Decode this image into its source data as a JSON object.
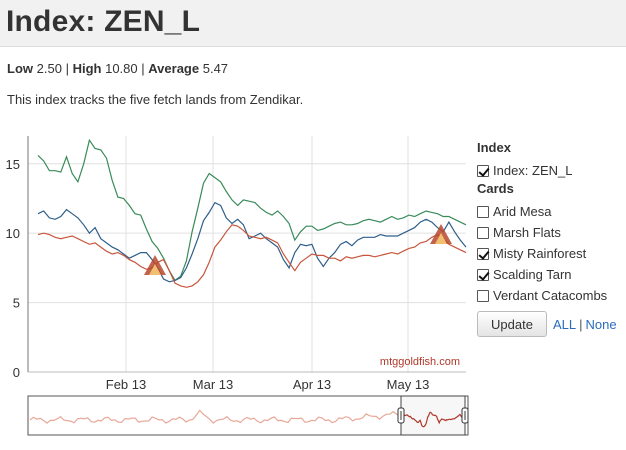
{
  "header": {
    "title": "Index: ZEN_L"
  },
  "stats": {
    "low_label": "Low",
    "low_value": "2.50",
    "high_label": "High",
    "high_value": "10.80",
    "avg_label": "Average",
    "avg_value": "5.47",
    "separator": "|"
  },
  "description": "This index tracks the five fetch lands from Zendikar.",
  "chart": {
    "watermark": "mtggoldfish.com",
    "colors": {
      "index": "#c8553d",
      "misty": "#2e5f8a",
      "scalding": "#3a8a5a",
      "grid": "#e0e0e0",
      "navigator": "#e8a898"
    }
  },
  "chart_data": {
    "type": "line",
    "ylim": [
      0,
      17
    ],
    "yticks": [
      "0",
      "5",
      "10",
      "15"
    ],
    "xticks": [
      "Feb 13",
      "Mar 13",
      "Apr 13",
      "May 13"
    ],
    "grid": true,
    "legend_placement": "right",
    "series": [
      {
        "name": "Index: ZEN_L",
        "color": "#c8553d",
        "values": [
          9.9,
          10.0,
          9.9,
          9.7,
          9.6,
          9.7,
          9.8,
          9.6,
          9.4,
          9.2,
          9.3,
          9.0,
          8.7,
          8.5,
          8.6,
          8.4,
          8.1,
          7.9,
          7.6,
          7.4,
          7.5,
          7.9,
          8.1,
          7.3,
          6.4,
          6.2,
          6.1,
          6.2,
          6.5,
          7.0,
          7.9,
          9.0,
          9.5,
          10.1,
          10.6,
          10.5,
          10.2,
          9.8,
          9.7,
          9.6,
          9.7,
          9.5,
          9.3,
          8.5,
          7.9,
          7.3,
          7.9,
          8.2,
          8.5,
          8.4,
          8.4,
          8.2,
          8.2,
          8.0,
          8.3,
          8.2,
          8.3,
          8.4,
          8.4,
          8.3,
          8.4,
          8.5,
          8.6,
          8.5,
          8.7,
          8.9,
          9.0,
          9.3,
          9.4,
          9.7,
          9.9,
          9.6,
          9.2,
          9.0,
          8.8,
          8.6
        ]
      },
      {
        "name": "Misty Rainforest",
        "color": "#2e5f8a",
        "values": [
          11.4,
          11.6,
          11.1,
          11.0,
          11.2,
          11.7,
          11.4,
          11.1,
          10.6,
          10.0,
          10.4,
          9.6,
          9.3,
          9.0,
          8.8,
          8.5,
          8.2,
          8.4,
          8.6,
          8.6,
          8.1,
          7.5,
          6.7,
          6.5,
          6.6,
          6.8,
          7.5,
          8.5,
          9.6,
          10.9,
          11.5,
          12.2,
          12.0,
          11.1,
          10.7,
          11.0,
          10.6,
          9.6,
          9.8,
          10.0,
          9.6,
          9.3,
          9.0,
          8.1,
          7.5,
          8.6,
          9.2,
          9.1,
          9.2,
          8.2,
          7.6,
          8.2,
          8.6,
          9.2,
          9.4,
          9.1,
          9.5,
          9.7,
          9.7,
          9.7,
          9.9,
          9.8,
          9.8,
          9.8,
          10.0,
          10.2,
          10.4,
          10.8,
          11.0,
          10.8,
          10.4,
          10.1,
          10.8,
          10.1,
          9.5,
          9.0
        ]
      },
      {
        "name": "Scalding Tarn",
        "color": "#3a8a5a",
        "values": [
          15.6,
          15.2,
          14.5,
          14.5,
          14.4,
          15.5,
          14.3,
          13.7,
          15.0,
          16.7,
          16.1,
          16.0,
          15.4,
          13.8,
          12.6,
          12.5,
          12.0,
          11.4,
          11.3,
          10.3,
          9.4,
          8.9,
          8.2,
          7.3,
          6.6,
          6.9,
          8.0,
          10.1,
          11.8,
          13.6,
          14.3,
          14.0,
          13.7,
          13.0,
          12.4,
          12.0,
          12.4,
          12.3,
          12.2,
          11.8,
          11.5,
          11.3,
          11.6,
          11.2,
          10.7,
          9.5,
          10.1,
          10.5,
          10.5,
          10.2,
          10.3,
          10.5,
          10.7,
          10.8,
          10.6,
          10.6,
          10.7,
          10.9,
          11.0,
          10.9,
          10.8,
          11.0,
          11.2,
          11.0,
          11.1,
          11.3,
          11.2,
          11.4,
          11.6,
          11.5,
          11.4,
          11.2,
          11.2,
          11.0,
          10.8,
          10.6
        ]
      }
    ]
  },
  "legend": {
    "index_heading": "Index",
    "cards_heading": "Cards",
    "index_item": {
      "label": "Index: ZEN_L",
      "checked": true
    },
    "cards": [
      {
        "label": "Arid Mesa",
        "checked": false
      },
      {
        "label": "Marsh Flats",
        "checked": false
      },
      {
        "label": "Misty Rainforest",
        "checked": true
      },
      {
        "label": "Scalding Tarn",
        "checked": true
      },
      {
        "label": "Verdant Catacombs",
        "checked": false
      }
    ],
    "update_label": "Update",
    "all_label": "ALL",
    "link_separator": "|",
    "none_label": "None"
  }
}
